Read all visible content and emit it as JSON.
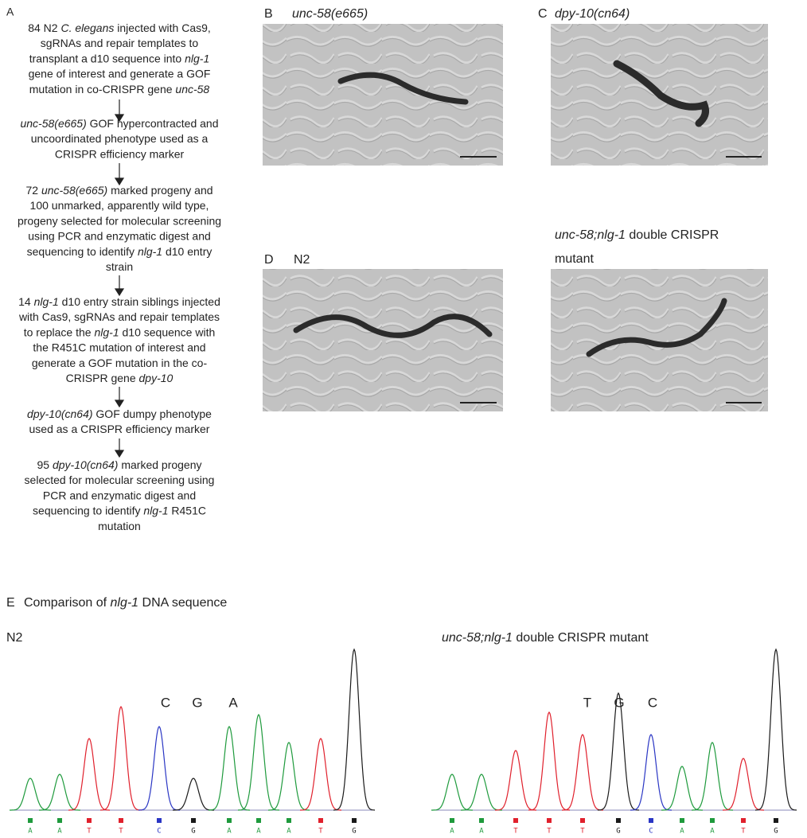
{
  "panel_a": {
    "label": "A",
    "steps": [
      {
        "lines": [
          [
            "84 N2 ",
            {
              "text": "C. elegans",
              "italic": true
            },
            " injected with Cas9,"
          ],
          [
            "sgRNAs and repair templates to"
          ],
          [
            "transplant a d10 sequence into ",
            {
              "text": "nlg-1",
              "italic": true
            }
          ],
          [
            "gene of interest and generate a GOF"
          ],
          [
            "mutation in co-CRISPR gene ",
            {
              "text": "unc-58",
              "italic": true
            }
          ]
        ]
      },
      {
        "lines": [
          [
            {
              "text": "unc-58(e665)",
              "italic": true
            },
            " GOF hypercontracted and"
          ],
          [
            "uncoordinated phenotype used as a"
          ],
          [
            "CRISPR efficiency marker"
          ]
        ]
      },
      {
        "lines": [
          [
            "72 ",
            {
              "text": "unc-58(e665)",
              "italic": true
            },
            " marked progeny and"
          ],
          [
            "100 unmarked, apparently wild type,"
          ],
          [
            "progeny selected for molecular screening"
          ],
          [
            "using PCR and enzymatic digest and"
          ],
          [
            "sequencing to identify ",
            {
              "text": "nlg-1",
              "italic": true
            },
            " d10 entry"
          ],
          [
            "strain"
          ]
        ]
      },
      {
        "lines": [
          [
            "14 ",
            {
              "text": "nlg-1",
              "italic": true
            },
            " d10 entry strain siblings injected"
          ],
          [
            "with Cas9, sgRNAs and repair templates"
          ],
          [
            "to replace the ",
            {
              "text": "nlg-1",
              "italic": true
            },
            " d10 sequence with"
          ],
          [
            "the R451C mutation of interest and"
          ],
          [
            "generate a GOF mutation in the co-"
          ],
          [
            "CRISPR gene ",
            {
              "text": "dpy-10",
              "italic": true
            }
          ]
        ]
      },
      {
        "lines": [
          [
            {
              "text": "dpy-10(cn64)",
              "italic": true
            },
            " GOF dumpy phenotype"
          ],
          [
            "used as a CRISPR efficiency marker"
          ]
        ]
      },
      {
        "lines": [
          [
            "95 ",
            {
              "text": "dpy-10(cn64)",
              "italic": true
            },
            " marked progeny"
          ],
          [
            "selected for molecular screening using"
          ],
          [
            "PCR and enzymatic digest and"
          ],
          [
            "sequencing to identify ",
            {
              "text": "nlg-1",
              "italic": true
            },
            " R451C"
          ],
          [
            "mutation"
          ]
        ]
      }
    ]
  },
  "panels": [
    {
      "label": "B",
      "title_lines": [
        [
          {
            "text": "unc-58(e665)",
            "italic": true
          }
        ]
      ]
    },
    {
      "label": "C",
      "title_lines": [
        [
          {
            "text": "dpy-10(cn64)",
            "italic": true
          }
        ]
      ]
    },
    {
      "label": "D",
      "title_lines": [
        [
          "N2"
        ]
      ]
    },
    {
      "title_lines": [
        [
          {
            "text": "unc-58;nlg-1",
            "italic": true
          },
          " double CRISPR"
        ],
        [
          "mutant"
        ]
      ]
    }
  ],
  "panel_e": {
    "label": "E",
    "title": [
      "Comparison of ",
      {
        "text": "nlg-1",
        "italic": true
      },
      " DNA sequence"
    ],
    "base_colors": {
      "A": "#1e9a3c",
      "T": "#e0202c",
      "C": "#2a36c4",
      "G": "#1a1a1a"
    },
    "traces": [
      {
        "title": [
          "N2"
        ],
        "calls": [
          "C",
          "G",
          "A"
        ],
        "bases": [
          "A",
          "A",
          "T",
          "T",
          "C",
          "G",
          "A",
          "A",
          "A",
          "T",
          "G"
        ],
        "peaks": [
          40,
          45,
          90,
          130,
          105,
          40,
          105,
          120,
          85,
          90,
          202
        ]
      },
      {
        "title": [
          {
            "text": "unc-58;nlg-1",
            "italic": true
          },
          " double CRISPR mutant"
        ],
        "calls": [
          "T",
          "G",
          "C"
        ],
        "bases": [
          "A",
          "A",
          "T",
          "T",
          "T",
          "G",
          "C",
          "A",
          "A",
          "T",
          "G"
        ],
        "peaks": [
          45,
          45,
          75,
          123,
          95,
          147,
          95,
          55,
          85,
          65,
          202
        ]
      }
    ]
  }
}
